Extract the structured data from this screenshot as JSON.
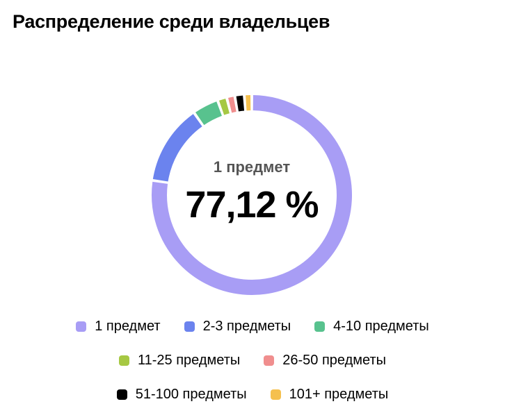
{
  "title": "Распределение среди владельцев",
  "center": {
    "label": "1 предмет",
    "value": "77,12 %"
  },
  "chart_data": {
    "type": "pie",
    "variant": "donut",
    "title": "Распределение среди владельцев",
    "categories": [
      "1 предмет",
      "2-3 предметы",
      "4-10 предметы",
      "11-25 предметы",
      "26-50 предметы",
      "51-100 предметы",
      "101+ предметы"
    ],
    "values": [
      77.12,
      12.9,
      4.2,
      1.5,
      1.3,
      1.5,
      1.2
    ],
    "colors": [
      "#a89df5",
      "#6b83ee",
      "#58c28e",
      "#a6c843",
      "#f08e8e",
      "#000000",
      "#f5c04e"
    ],
    "legend": "bottom"
  },
  "legend": {
    "rows": [
      [
        {
          "label": "1 предмет",
          "color": "#a89df5"
        },
        {
          "label": "2-3 предметы",
          "color": "#6b83ee"
        },
        {
          "label": "4-10 предметы",
          "color": "#58c28e"
        }
      ],
      [
        {
          "label": "11-25 предметы",
          "color": "#a6c843"
        },
        {
          "label": "26-50 предметы",
          "color": "#f08e8e"
        }
      ],
      [
        {
          "label": "51-100 предметы",
          "color": "#000000"
        },
        {
          "label": "101+ предметы",
          "color": "#f5c04e"
        }
      ]
    ]
  }
}
